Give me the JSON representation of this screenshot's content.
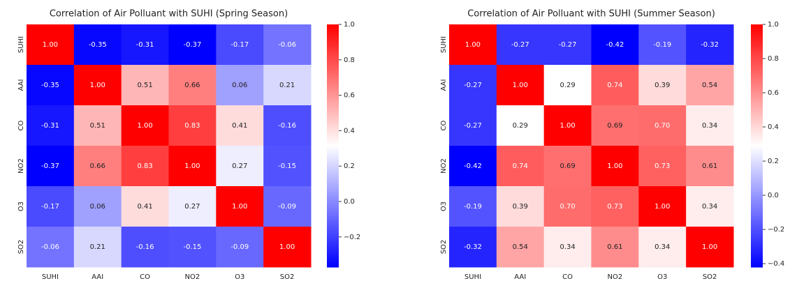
{
  "chart_data": [
    {
      "type": "heatmap",
      "title": "Correlation of Air Polluant with SUHI (Spring Season)",
      "categories": [
        "SUHI",
        "AAI",
        "CO",
        "NO2",
        "O3",
        "SO2"
      ],
      "values": [
        [
          1.0,
          -0.35,
          -0.31,
          -0.37,
          -0.17,
          -0.06
        ],
        [
          -0.35,
          1.0,
          0.51,
          0.66,
          0.06,
          0.21
        ],
        [
          -0.31,
          0.51,
          1.0,
          0.83,
          0.41,
          -0.16
        ],
        [
          -0.37,
          0.66,
          0.83,
          1.0,
          0.27,
          -0.15
        ],
        [
          -0.17,
          0.06,
          0.41,
          0.27,
          1.0,
          -0.09
        ],
        [
          -0.06,
          0.21,
          -0.16,
          -0.15,
          -0.09,
          1.0
        ]
      ],
      "value_labels": [
        [
          "1.00",
          "-0.35",
          "-0.31",
          "-0.37",
          "-0.17",
          "-0.06"
        ],
        [
          "-0.35",
          "1.00",
          "0.51",
          "0.66",
          "0.06",
          "0.21"
        ],
        [
          "-0.31",
          "0.51",
          "1.00",
          "0.83",
          "0.41",
          "-0.16"
        ],
        [
          "-0.37",
          "0.66",
          "0.83",
          "1.00",
          "0.27",
          "-0.15"
        ],
        [
          "-0.17",
          "0.06",
          "0.41",
          "0.27",
          "1.00",
          "-0.09"
        ],
        [
          "-0.06",
          "0.21",
          "-0.16",
          "-0.15",
          "-0.09",
          "1.00"
        ]
      ],
      "colormap": [
        "#0000ff",
        "#ffffff",
        "#ff0000"
      ],
      "clim": [
        -0.37,
        1.0
      ],
      "cticks": [
        {
          "value": -0.2,
          "label": "−0.2"
        },
        {
          "value": 0.0,
          "label": "0.0"
        },
        0.2,
        0.4,
        0.6,
        0.8,
        {
          "value": 1.0,
          "label": "1.0"
        }
      ]
    },
    {
      "type": "heatmap",
      "title": "Correlation of Air Polluant with SUHI (Summer Season)",
      "categories": [
        "SUHI",
        "AAI",
        "CO",
        "NO2",
        "O3",
        "SO2"
      ],
      "values": [
        [
          1.0,
          -0.27,
          -0.27,
          -0.42,
          -0.19,
          -0.32
        ],
        [
          -0.27,
          1.0,
          0.29,
          0.74,
          0.39,
          0.54
        ],
        [
          -0.27,
          0.29,
          1.0,
          0.69,
          0.7,
          0.34
        ],
        [
          -0.42,
          0.74,
          0.69,
          1.0,
          0.73,
          0.61
        ],
        [
          -0.19,
          0.39,
          0.7,
          0.73,
          1.0,
          0.34
        ],
        [
          -0.32,
          0.54,
          0.34,
          0.61,
          0.34,
          1.0
        ]
      ],
      "value_labels": [
        [
          "1.00",
          "-0.27",
          "-0.27",
          "-0.42",
          "-0.19",
          "-0.32"
        ],
        [
          "-0.27",
          "1.00",
          "0.29",
          "0.74",
          "0.39",
          "0.54"
        ],
        [
          "-0.27",
          "0.29",
          "1.00",
          "0.69",
          "0.70",
          "0.34"
        ],
        [
          "-0.42",
          "0.74",
          "0.69",
          "1.00",
          "0.73",
          "0.61"
        ],
        [
          "-0.19",
          "0.39",
          "0.70",
          "0.73",
          "1.00",
          "0.34"
        ],
        [
          "-0.32",
          "0.54",
          "0.34",
          "0.61",
          "0.34",
          "1.00"
        ]
      ],
      "colormap": [
        "#0000ff",
        "#ffffff",
        "#ff0000"
      ],
      "clim": [
        -0.42,
        1.0
      ],
      "cticks": [
        {
          "value": -0.4,
          "label": "−0.4"
        },
        {
          "value": -0.2,
          "label": "−0.2"
        },
        {
          "value": 0.0,
          "label": "0.0"
        },
        0.2,
        0.4,
        0.6,
        0.8,
        {
          "value": 1.0,
          "label": "1.0"
        }
      ]
    }
  ]
}
